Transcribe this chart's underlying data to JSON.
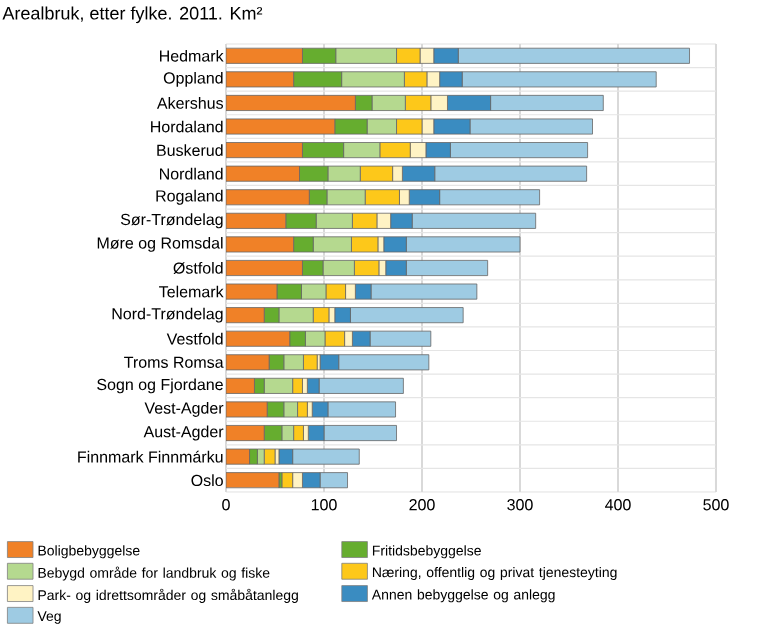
{
  "chart_data": {
    "type": "bar",
    "orientation": "horizontal",
    "stacked": true,
    "title": "Arealbruk, etter fylke. 2011. Km²",
    "categories": [
      "Hedmark",
      "Oppland",
      "Akershus",
      "Hordaland",
      "Buskerud",
      "Nordland",
      "Rogaland",
      "Sør-Trøndelag",
      "Møre og Romsdal",
      "Østfold",
      "Telemark",
      "Nord-Trøndelag",
      "Vestfold",
      "Troms Romsa",
      "Sogn og Fjordane",
      "Vest-Agder",
      "Aust-Agder",
      "Finnmark Finnmárku",
      "Oslo"
    ],
    "series": [
      {
        "name": "Boligbebyggelse",
        "color": "#f08127",
        "values": [
          78,
          69,
          132,
          111,
          78,
          75,
          85,
          61,
          69,
          78,
          52,
          39,
          65,
          44,
          29,
          42,
          39,
          24,
          54
        ]
      },
      {
        "name": "Fritidsbebyggelse",
        "color": "#66ad2f",
        "values": [
          34,
          49,
          17,
          33,
          42,
          29,
          18,
          31,
          20,
          21,
          25,
          15,
          16,
          15,
          10,
          17,
          18,
          8,
          3
        ]
      },
      {
        "name": "Bebygd område for landbruk og fiske",
        "color": "#b5d98f",
        "values": [
          62,
          64,
          34,
          30,
          37,
          33,
          39,
          37,
          39,
          32,
          25,
          35,
          20,
          20,
          29,
          14,
          12,
          7,
          0
        ]
      },
      {
        "name": "Næring, offentlig og privat tjenesteyting",
        "color": "#fdc81a",
        "values": [
          24,
          23,
          26,
          26,
          31,
          33,
          35,
          25,
          27,
          25,
          20,
          16,
          20,
          14,
          10,
          10,
          10,
          11,
          11
        ]
      },
      {
        "name": "Park- og idrettsområder og småbåtanlegg",
        "color": "#fff3c4",
        "values": [
          14,
          13,
          17,
          12,
          16,
          10,
          10,
          14,
          6,
          7,
          10,
          6,
          8,
          3,
          5,
          5,
          5,
          4,
          10
        ]
      },
      {
        "name": "Annen bebyggelse og anlegg",
        "color": "#3a8cc1",
        "values": [
          25,
          23,
          44,
          37,
          25,
          33,
          31,
          22,
          23,
          21,
          16,
          16,
          18,
          19,
          12,
          16,
          16,
          14,
          18
        ]
      },
      {
        "name": "Veg",
        "color": "#9ecbe3",
        "values": [
          236,
          198,
          115,
          125,
          140,
          155,
          102,
          126,
          116,
          83,
          108,
          115,
          62,
          92,
          86,
          69,
          74,
          68,
          28
        ]
      }
    ],
    "xlim": [
      0,
      500
    ],
    "xticks": [
      0,
      100,
      200,
      300,
      400,
      500
    ],
    "grid": "x",
    "legend": "bottom"
  }
}
